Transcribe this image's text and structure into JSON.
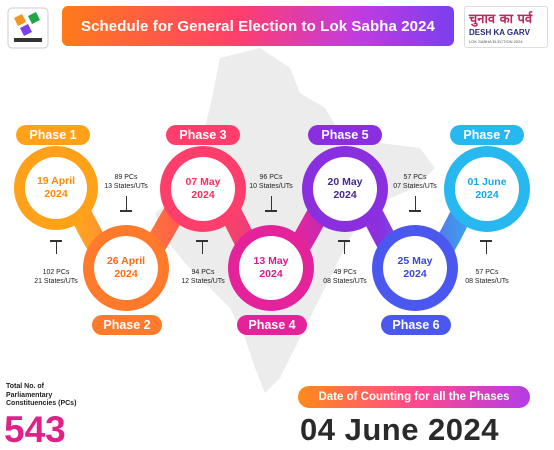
{
  "header": {
    "title": "Schedule for General Election to Lok Sabha 2024"
  },
  "brand": {
    "hindi": "चुनाव का पर्व",
    "english": "DESH KA GARV",
    "sub": "LOK SABHA ELECTION 2024"
  },
  "phases": [
    {
      "label": "Phase 1",
      "date1": "19 April",
      "date2": "2024",
      "pcs": "102 PCs",
      "states": "21 States/UTs",
      "color": "#ffa21a"
    },
    {
      "label": "Phase 2",
      "date1": "26 April",
      "date2": "2024",
      "pcs": "89 PCs",
      "states": "13 States/UTs",
      "color": "#ff7a2a"
    },
    {
      "label": "Phase 3",
      "date1": "07 May",
      "date2": "2024",
      "pcs": "94 PCs",
      "states": "12 States/UTs",
      "color": "#ff3e6c"
    },
    {
      "label": "Phase 4",
      "date1": "13 May",
      "date2": "2024",
      "pcs": "96 PCs",
      "states": "10 States/UTs",
      "color": "#e4229a"
    },
    {
      "label": "Phase 5",
      "date1": "20 May",
      "date2": "2024",
      "pcs": "49 PCs",
      "states": "08 States/UTs",
      "color": "#8a2fe0"
    },
    {
      "label": "Phase 6",
      "date1": "25 May",
      "date2": "2024",
      "pcs": "57 PCs",
      "states": "07 States/UTs",
      "color": "#4a58f0"
    },
    {
      "label": "Phase 7",
      "date1": "01 June",
      "date2": "2024",
      "pcs": "57 PCs",
      "states": "08 States/UTs",
      "color": "#28b8f0"
    }
  ],
  "total": {
    "label_line1": "Total No. of",
    "label_line2": "Parliamentary",
    "label_line3": "Constituencies (PCs)",
    "value": "543"
  },
  "counting": {
    "label": "Date of Counting for all the Phases",
    "date": "04 June 2024"
  }
}
